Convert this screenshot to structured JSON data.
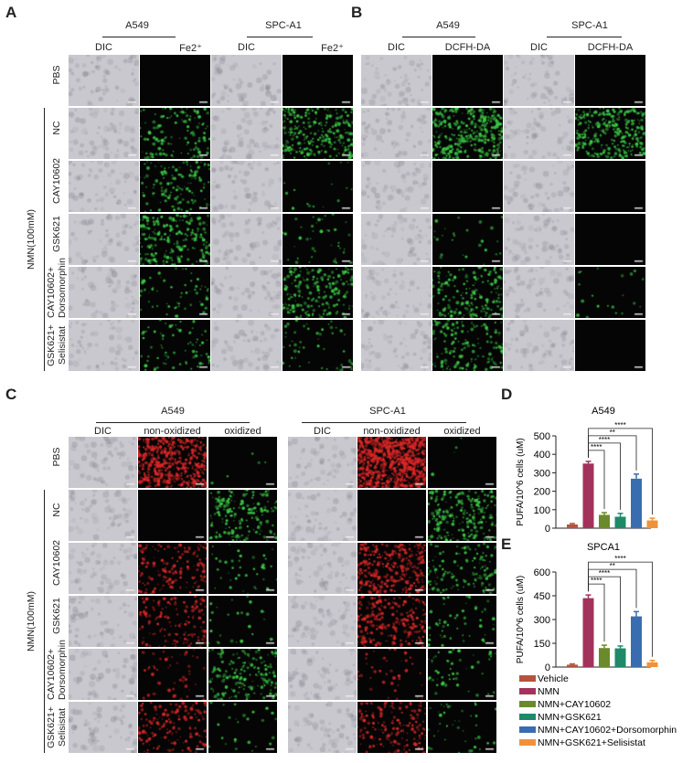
{
  "panels": {
    "A": {
      "letter": "A",
      "groups": [
        "A549",
        "SPC-A1"
      ],
      "columns": [
        "DIC",
        "Fe2⁺",
        "DIC",
        "Fe2⁺"
      ],
      "rows": [
        "PBS",
        "NC",
        "CAY10602",
        "GSK621",
        "CAY10602+ Dorsomorphin",
        "GSK621+ Selisistat"
      ],
      "treatment": "NMN(100mM)"
    },
    "B": {
      "letter": "B",
      "groups": [
        "A549",
        "SPC-A1"
      ],
      "columns": [
        "DIC",
        "DCFH-DA",
        "DIC",
        "DCFH-DA"
      ]
    },
    "C": {
      "letter": "C",
      "groups": [
        "A549",
        "SPC-A1"
      ],
      "columns": [
        "DIC",
        "non-oxidized",
        "oxidized",
        "DIC",
        "non-oxidized",
        "oxidized"
      ],
      "rows": [
        "PBS",
        "NC",
        "CAY10602",
        "GSK621",
        "CAY10602+ Dorsomorphin",
        "GSK621+ Selisistat"
      ],
      "treatment": "NMN(100mM)"
    },
    "D": {
      "letter": "D"
    },
    "E": {
      "letter": "E"
    }
  },
  "chart_data": [
    {
      "type": "bar",
      "title": "A549",
      "ylabel": "PUFA/10^6 cells (uM)",
      "ylim": [
        0,
        500
      ],
      "yticks": [
        0,
        100,
        200,
        300,
        400,
        500
      ],
      "categories": [
        "Vehicle",
        "NMN",
        "NMN+CAY10602",
        "NMN+GSK621",
        "NMN+CAY10602+Dorsomorphin",
        "NMN+GSK621+Selisistat"
      ],
      "values": [
        20,
        350,
        72,
        62,
        268,
        42
      ],
      "errors": [
        5,
        12,
        12,
        18,
        25,
        12
      ],
      "significance": [
        {
          "from": "NMN",
          "to": "NMN+CAY10602",
          "label": "****"
        },
        {
          "from": "NMN",
          "to": "NMN+GSK621",
          "label": "****"
        },
        {
          "from": "NMN",
          "to": "NMN+CAY10602+Dorsomorphin",
          "label": "**"
        },
        {
          "from": "NMN",
          "to": "NMN+GSK621+Selisistat",
          "label": "****"
        }
      ]
    },
    {
      "type": "bar",
      "title": "SPCA1",
      "ylabel": "PUFA/10^6 cells (uM)",
      "ylim": [
        0,
        600
      ],
      "yticks": [
        0,
        150,
        300,
        450,
        600
      ],
      "categories": [
        "Vehicle",
        "NMN",
        "NMN+CAY10602",
        "NMN+GSK621",
        "NMN+CAY10602+Dorsomorphin",
        "NMN+GSK621+Selisistat"
      ],
      "values": [
        15,
        435,
        120,
        118,
        320,
        30
      ],
      "errors": [
        5,
        20,
        18,
        15,
        30,
        12
      ],
      "significance": [
        {
          "from": "NMN",
          "to": "NMN+CAY10602",
          "label": "****"
        },
        {
          "from": "NMN",
          "to": "NMN+GSK621",
          "label": "****"
        },
        {
          "from": "NMN",
          "to": "NMN+CAY10602+Dorsomorphin",
          "label": "**"
        },
        {
          "from": "NMN",
          "to": "NMN+GSK621+Selisistat",
          "label": "****"
        }
      ]
    }
  ],
  "legend": [
    {
      "label": "Vehicle",
      "color": "#b5543a"
    },
    {
      "label": "NMN",
      "color": "#a3325a"
    },
    {
      "label": "NMN+CAY10602",
      "color": "#6b8a2c"
    },
    {
      "label": "NMN+GSK621",
      "color": "#1e8a6a"
    },
    {
      "label": "NMN+CAY10602+Dorsomorphin",
      "color": "#3a6db0"
    },
    {
      "label": "NMN+GSK621+Selisistat",
      "color": "#f0923a"
    }
  ]
}
